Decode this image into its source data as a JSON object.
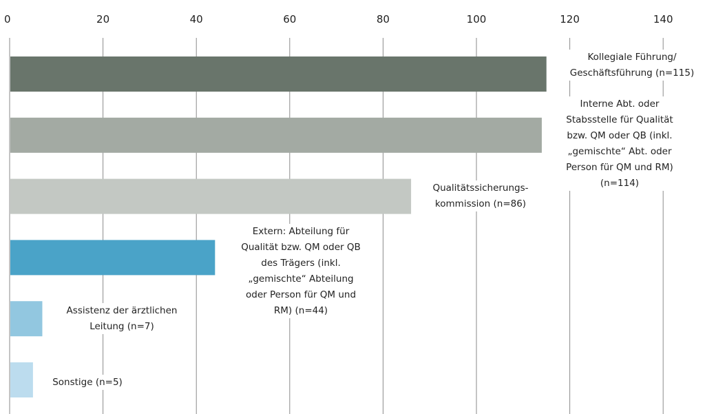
{
  "chart_data": {
    "type": "bar",
    "orientation": "horizontal",
    "title": "",
    "xlabel": "",
    "ylabel": "",
    "xlim": [
      0,
      140
    ],
    "grid": "vertical",
    "x_ticks": [
      "0",
      "20",
      "40",
      "60",
      "80",
      "100",
      "120",
      "140"
    ],
    "categories": [
      "Kollegiale Führung/ Geschäftsführung (n=115)",
      "Interne Abt. oder Stabsstelle für Qualität bzw. QM oder QB (inkl. „gemischte“ Abt. oder Person für QM und RM) (n=114)",
      "Qualitätssicherungs-kommission (n=86)",
      "Extern: Abteilung für Qualität bzw. QM oder QB des Trägers (inkl. „gemischte“ Abteilung oder Person für QM und RM) (n=44)",
      "Assistenz der ärztlichen Leitung (n=7)",
      "Sonstige (n=5)"
    ],
    "values": [
      115,
      114,
      86,
      44,
      7,
      5
    ],
    "colors": [
      "#69756b",
      "#a3aaa3",
      "#c3c8c3",
      "#4aa3c8",
      "#92c7e0",
      "#bcdcee"
    ],
    "label_lines": [
      [
        "Kollegiale Führung/",
        "Geschäftsführung (n=115)"
      ],
      [
        "Interne Abt. oder",
        "Stabsstelle für Qualität",
        "bzw. QM oder QB (inkl.",
        "„gemischte“ Abt. oder",
        "Person für QM und RM)",
        "(n=114)"
      ],
      [
        "Qualitätssicherungs-",
        "kommission (n=86)"
      ],
      [
        "Extern: Abteilung für",
        "Qualität bzw. QM oder QB",
        "des Trägers (inkl.",
        "„gemischte“ Abteilung",
        "oder Person für QM und",
        "RM) (n=44)"
      ],
      [
        "Assistenz der ärztlichen",
        "Leitung (n=7)"
      ],
      [
        "Sonstige (n=5)"
      ]
    ]
  }
}
